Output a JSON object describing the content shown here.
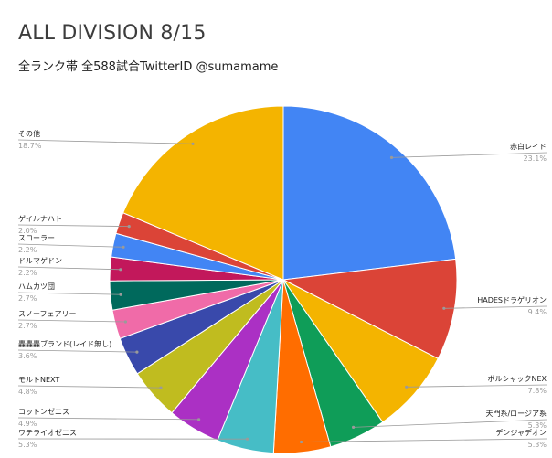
{
  "chart_data": {
    "type": "pie",
    "title": "ALL DIVISION 8/15",
    "subtitle": "全ランク帯 全588試合TwitterID @sumamame",
    "start": "top",
    "direction": "clockwise",
    "slices": [
      {
        "name": "赤白レイド",
        "value": 23.1,
        "label": "23.1%",
        "color": "#4285f4",
        "side": "right"
      },
      {
        "name": "HADESドラゲリオン",
        "value": 9.4,
        "label": "9.4%",
        "color": "#db4437",
        "side": "right"
      },
      {
        "name": "ボルシャックNEX",
        "value": 7.8,
        "label": "7.8%",
        "color": "#f4b400",
        "side": "right"
      },
      {
        "name": "天門系/ロージア系",
        "value": 5.3,
        "label": "5.3%",
        "color": "#0f9d58",
        "side": "right"
      },
      {
        "name": "デンジャデオン",
        "value": 5.3,
        "label": "5.3%",
        "color": "#ff6d00",
        "side": "right"
      },
      {
        "name": "ワテライオゼニス",
        "value": 5.3,
        "label": "5.3%",
        "color": "#46bdc6",
        "side": "left"
      },
      {
        "name": "コットンゼニス",
        "value": 4.9,
        "label": "4.9%",
        "color": "#ab30c4",
        "side": "left"
      },
      {
        "name": "モルトNEXT",
        "value": 4.8,
        "label": "4.8%",
        "color": "#c0bc1f",
        "side": "left"
      },
      {
        "name": "轟轟轟ブランド(レイド無し)",
        "value": 3.6,
        "label": "3.6%",
        "color": "#3949ab",
        "side": "left"
      },
      {
        "name": "スノーフェアリー",
        "value": 2.7,
        "label": "2.7%",
        "color": "#f06ba8",
        "side": "left"
      },
      {
        "name": "ハムカツ団",
        "value": 2.7,
        "label": "2.7%",
        "color": "#00695c",
        "side": "left"
      },
      {
        "name": "ドルマゲドン",
        "value": 2.2,
        "label": "2.2%",
        "color": "#c2185b",
        "side": "left"
      },
      {
        "name": "スコーラー",
        "value": 2.2,
        "label": "2.2%",
        "color": "#4285f4",
        "side": "left"
      },
      {
        "name": "ゲイルナハト",
        "value": 2.0,
        "label": "2.0%",
        "color": "#db4437",
        "side": "left"
      },
      {
        "name": "その他",
        "value": 18.7,
        "label": "18.7%",
        "color": "#f4b400",
        "side": "left"
      }
    ]
  }
}
